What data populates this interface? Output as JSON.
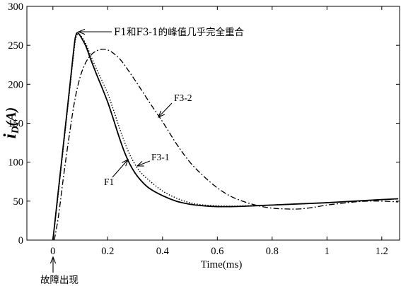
{
  "chart_data": {
    "type": "line",
    "xlabel": "Time(ms)",
    "ylabel": {
      "symbol": "i",
      "subscript": "D",
      "unit": "(A)"
    },
    "xlim": [
      -0.095,
      1.265
    ],
    "ylim": [
      0,
      300
    ],
    "xticks": [
      0,
      0.2,
      0.4,
      0.6,
      0.8,
      1,
      1.2
    ],
    "yticks": [
      0,
      50,
      100,
      150,
      200,
      250,
      300
    ],
    "grid": false,
    "series": [
      {
        "name": "F1",
        "color": "#000000",
        "x": [
          0,
          0.01,
          0.02,
          0.03,
          0.04,
          0.05,
          0.06,
          0.07,
          0.08,
          0.085,
          0.09,
          0.1,
          0.12,
          0.14,
          0.16,
          0.18,
          0.2,
          0.22,
          0.24,
          0.26,
          0.28,
          0.3,
          0.32,
          0.35,
          0.4,
          0.45,
          0.5,
          0.55,
          0.6,
          0.65,
          0.7,
          0.8,
          0.9,
          1.0,
          1.1,
          1.2,
          1.26
        ],
        "y": [
          0,
          32,
          64,
          96,
          128,
          160,
          192,
          225,
          256,
          264,
          266,
          262,
          249,
          230,
          212,
          195,
          177,
          156,
          134,
          114,
          98,
          86,
          77,
          67,
          57,
          50,
          46,
          44,
          43,
          43,
          43.5,
          45,
          46.5,
          48,
          50,
          52,
          53
        ]
      },
      {
        "name": "F3-1",
        "color": "#000000",
        "x": [
          0,
          0.01,
          0.02,
          0.03,
          0.04,
          0.05,
          0.06,
          0.07,
          0.08,
          0.085,
          0.09,
          0.1,
          0.12,
          0.14,
          0.16,
          0.18,
          0.2,
          0.22,
          0.24,
          0.26,
          0.28,
          0.3,
          0.32,
          0.35,
          0.4,
          0.45,
          0.5,
          0.55,
          0.6,
          0.65,
          0.7,
          0.8,
          0.9,
          1.0,
          1.1,
          1.2,
          1.26
        ],
        "y": [
          0,
          30,
          61,
          93,
          125,
          157,
          189,
          221,
          252,
          261,
          264,
          263,
          252,
          235,
          219,
          204,
          188,
          168,
          147,
          127,
          110,
          97,
          87,
          77,
          63,
          54,
          48,
          45,
          44,
          43.5,
          44,
          45,
          46.5,
          48,
          50,
          52,
          53
        ]
      },
      {
        "name": "F3-2",
        "color": "#000000",
        "x": [
          0.005,
          0.02,
          0.04,
          0.06,
          0.08,
          0.1,
          0.12,
          0.14,
          0.16,
          0.18,
          0.2,
          0.22,
          0.25,
          0.3,
          0.35,
          0.4,
          0.45,
          0.5,
          0.55,
          0.6,
          0.65,
          0.7,
          0.75,
          0.8,
          0.85,
          0.9,
          0.95,
          1.0,
          1.05,
          1.1,
          1.15,
          1.2,
          1.26
        ],
        "y": [
          0,
          30,
          85,
          135,
          180,
          210,
          228,
          238,
          243,
          245,
          244,
          240,
          230,
          205,
          178,
          152,
          124,
          100,
          82,
          67,
          56,
          49,
          44,
          41,
          40,
          40,
          42,
          45,
          47,
          49,
          50,
          50,
          49
        ]
      }
    ],
    "annotations": [
      {
        "text": "F1和F3-1的峰值几乎完全重合"
      },
      {
        "text": "故障出现"
      }
    ]
  }
}
